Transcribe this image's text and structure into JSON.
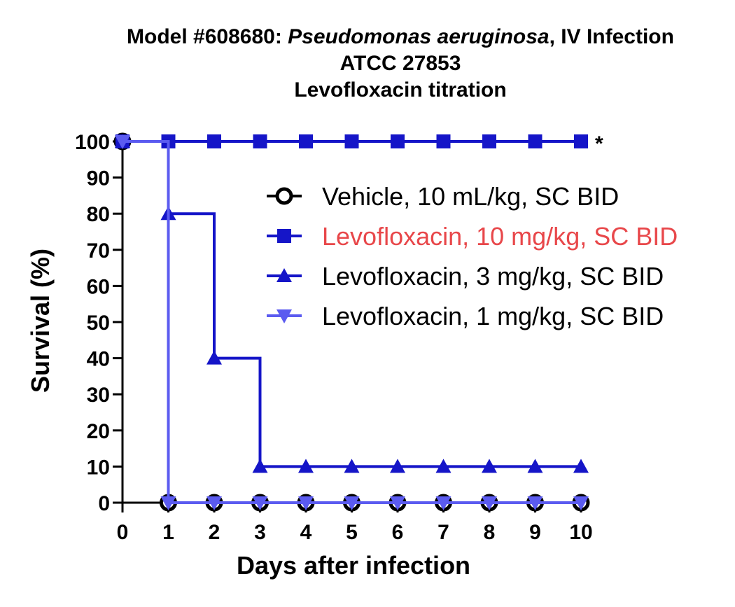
{
  "chart_data": {
    "type": "line",
    "title_lines": [
      [
        {
          "text": "Model #608680: ",
          "italic": false
        },
        {
          "text": "Pseudomonas aeruginosa",
          "italic": true
        },
        {
          "text": ", IV Infection",
          "italic": false
        }
      ],
      [
        {
          "text": "ATCC 27853",
          "italic": false
        }
      ],
      [
        {
          "text": "Levofloxacin titration",
          "italic": false
        }
      ]
    ],
    "xlabel": "Days after infection",
    "ylabel": "Survival (%)",
    "xlim": [
      0,
      10
    ],
    "ylim": [
      0,
      100
    ],
    "x_ticks": [
      0,
      1,
      2,
      3,
      4,
      5,
      6,
      7,
      8,
      9,
      10
    ],
    "y_ticks": [
      0,
      10,
      20,
      30,
      40,
      50,
      60,
      70,
      80,
      90,
      100
    ],
    "step": true,
    "grid": false,
    "legend_position": "right, upper middle",
    "annotation": "*",
    "x": [
      0,
      1,
      2,
      3,
      4,
      5,
      6,
      7,
      8,
      9,
      10
    ],
    "series": [
      {
        "name": "Vehicle, 10 mL/kg, SC BID",
        "color": "#000000",
        "marker": "open-circle",
        "label_color": "#000000",
        "values": [
          100,
          0,
          0,
          0,
          0,
          0,
          0,
          0,
          0,
          0,
          0
        ]
      },
      {
        "name": "Levofloxacin, 10 mg/kg, SC BID",
        "color": "#1515c8",
        "marker": "square",
        "label_color": "#e8474a",
        "values": [
          100,
          100,
          100,
          100,
          100,
          100,
          100,
          100,
          100,
          100,
          100
        ]
      },
      {
        "name": "Levofloxacin, 3 mg/kg, SC BID",
        "color": "#1515c8",
        "marker": "triangle-up",
        "label_color": "#000000",
        "values": [
          100,
          80,
          40,
          10,
          10,
          10,
          10,
          10,
          10,
          10,
          10
        ]
      },
      {
        "name": "Levofloxacin, 1 mg/kg, SC BID",
        "color": "#5b5bf0",
        "marker": "triangle-down",
        "label_color": "#000000",
        "values": [
          100,
          0,
          0,
          0,
          0,
          0,
          0,
          0,
          0,
          0,
          0
        ]
      }
    ]
  }
}
